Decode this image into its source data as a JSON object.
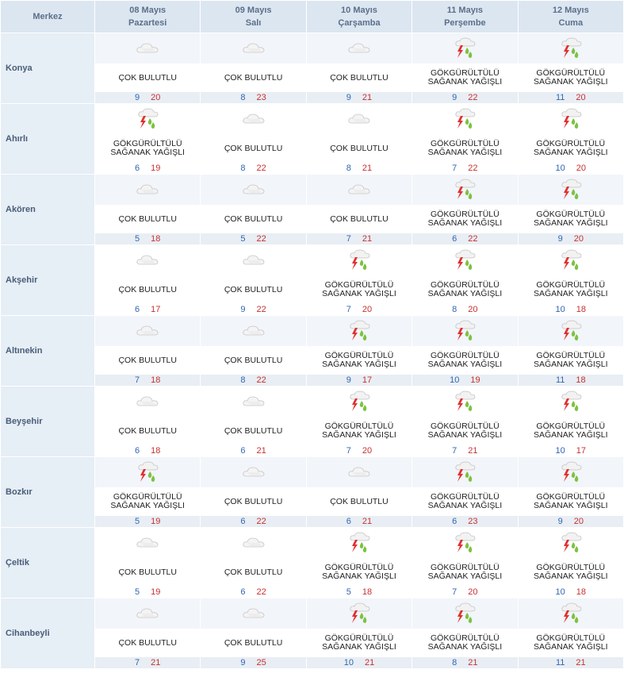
{
  "header": {
    "merkez": "Merkez",
    "days": [
      {
        "date": "08 Mayıs",
        "weekday": "Pazartesi"
      },
      {
        "date": "09 Mayıs",
        "weekday": "Salı"
      },
      {
        "date": "10 Mayıs",
        "weekday": "Çarşamba"
      },
      {
        "date": "11 Mayıs",
        "weekday": "Perşembe"
      },
      {
        "date": "12 Mayıs",
        "weekday": "Cuma"
      }
    ]
  },
  "icons": {
    "cloudy": "cloud-icon",
    "storm": "thunderstorm-icon"
  },
  "colors": {
    "header_bg": "#dce6f1",
    "low_temp": "#2f66b3",
    "high_temp": "#c8302f",
    "storm_bolt": "#e03030",
    "storm_drop": "#7dc242"
  },
  "rows": [
    {
      "city": "Konya",
      "days": [
        {
          "cond": "ÇOK BULUTLU",
          "icon": "cloud-icon",
          "lo": "9",
          "hi": "20"
        },
        {
          "cond": "ÇOK BULUTLU",
          "icon": "cloud-icon",
          "lo": "8",
          "hi": "23"
        },
        {
          "cond": "ÇOK BULUTLU",
          "icon": "cloud-icon",
          "lo": "9",
          "hi": "21"
        },
        {
          "cond": "GÖKGÜRÜLTÜLÜ SAĞANAK YAĞIŞLI",
          "icon": "thunderstorm-icon",
          "lo": "9",
          "hi": "22"
        },
        {
          "cond": "GÖKGÜRÜLTÜLÜ SAĞANAK YAĞIŞLI",
          "icon": "thunderstorm-icon",
          "lo": "11",
          "hi": "20"
        }
      ]
    },
    {
      "city": "Ahırlı",
      "days": [
        {
          "cond": "GÖKGÜRÜLTÜLÜ SAĞANAK YAĞIŞLI",
          "icon": "thunderstorm-icon",
          "lo": "6",
          "hi": "19"
        },
        {
          "cond": "ÇOK BULUTLU",
          "icon": "cloud-icon",
          "lo": "8",
          "hi": "22"
        },
        {
          "cond": "ÇOK BULUTLU",
          "icon": "cloud-icon",
          "lo": "8",
          "hi": "21"
        },
        {
          "cond": "GÖKGÜRÜLTÜLÜ SAĞANAK YAĞIŞLI",
          "icon": "thunderstorm-icon",
          "lo": "7",
          "hi": "22"
        },
        {
          "cond": "GÖKGÜRÜLTÜLÜ SAĞANAK YAĞIŞLI",
          "icon": "thunderstorm-icon",
          "lo": "10",
          "hi": "20"
        }
      ]
    },
    {
      "city": "Akören",
      "days": [
        {
          "cond": "ÇOK BULUTLU",
          "icon": "cloud-icon",
          "lo": "5",
          "hi": "18"
        },
        {
          "cond": "ÇOK BULUTLU",
          "icon": "cloud-icon",
          "lo": "5",
          "hi": "22"
        },
        {
          "cond": "ÇOK BULUTLU",
          "icon": "cloud-icon",
          "lo": "7",
          "hi": "21"
        },
        {
          "cond": "GÖKGÜRÜLTÜLÜ SAĞANAK YAĞIŞLI",
          "icon": "thunderstorm-icon",
          "lo": "6",
          "hi": "22"
        },
        {
          "cond": "GÖKGÜRÜLTÜLÜ SAĞANAK YAĞIŞLI",
          "icon": "thunderstorm-icon",
          "lo": "9",
          "hi": "20"
        }
      ]
    },
    {
      "city": "Akşehir",
      "days": [
        {
          "cond": "ÇOK BULUTLU",
          "icon": "cloud-icon",
          "lo": "6",
          "hi": "17"
        },
        {
          "cond": "ÇOK BULUTLU",
          "icon": "cloud-icon",
          "lo": "9",
          "hi": "22"
        },
        {
          "cond": "GÖKGÜRÜLTÜLÜ SAĞANAK YAĞIŞLI",
          "icon": "thunderstorm-icon",
          "lo": "7",
          "hi": "20"
        },
        {
          "cond": "GÖKGÜRÜLTÜLÜ SAĞANAK YAĞIŞLI",
          "icon": "thunderstorm-icon",
          "lo": "8",
          "hi": "20"
        },
        {
          "cond": "GÖKGÜRÜLTÜLÜ SAĞANAK YAĞIŞLI",
          "icon": "thunderstorm-icon",
          "lo": "10",
          "hi": "18"
        }
      ]
    },
    {
      "city": "Altınekin",
      "days": [
        {
          "cond": "ÇOK BULUTLU",
          "icon": "cloud-icon",
          "lo": "7",
          "hi": "18"
        },
        {
          "cond": "ÇOK BULUTLU",
          "icon": "cloud-icon",
          "lo": "8",
          "hi": "22"
        },
        {
          "cond": "GÖKGÜRÜLTÜLÜ SAĞANAK YAĞIŞLI",
          "icon": "thunderstorm-icon",
          "lo": "9",
          "hi": "17"
        },
        {
          "cond": "GÖKGÜRÜLTÜLÜ SAĞANAK YAĞIŞLI",
          "icon": "thunderstorm-icon",
          "lo": "10",
          "hi": "19"
        },
        {
          "cond": "GÖKGÜRÜLTÜLÜ SAĞANAK YAĞIŞLI",
          "icon": "thunderstorm-icon",
          "lo": "11",
          "hi": "18"
        }
      ]
    },
    {
      "city": "Beyşehir",
      "days": [
        {
          "cond": "ÇOK BULUTLU",
          "icon": "cloud-icon",
          "lo": "6",
          "hi": "18"
        },
        {
          "cond": "ÇOK BULUTLU",
          "icon": "cloud-icon",
          "lo": "6",
          "hi": "21"
        },
        {
          "cond": "GÖKGÜRÜLTÜLÜ SAĞANAK YAĞIŞLI",
          "icon": "thunderstorm-icon",
          "lo": "7",
          "hi": "20"
        },
        {
          "cond": "GÖKGÜRÜLTÜLÜ SAĞANAK YAĞIŞLI",
          "icon": "thunderstorm-icon",
          "lo": "7",
          "hi": "21"
        },
        {
          "cond": "GÖKGÜRÜLTÜLÜ SAĞANAK YAĞIŞLI",
          "icon": "thunderstorm-icon",
          "lo": "10",
          "hi": "17"
        }
      ]
    },
    {
      "city": "Bozkır",
      "days": [
        {
          "cond": "GÖKGÜRÜLTÜLÜ SAĞANAK YAĞIŞLI",
          "icon": "thunderstorm-icon",
          "lo": "5",
          "hi": "19"
        },
        {
          "cond": "ÇOK BULUTLU",
          "icon": "cloud-icon",
          "lo": "6",
          "hi": "22"
        },
        {
          "cond": "ÇOK BULUTLU",
          "icon": "cloud-icon",
          "lo": "6",
          "hi": "21"
        },
        {
          "cond": "GÖKGÜRÜLTÜLÜ SAĞANAK YAĞIŞLI",
          "icon": "thunderstorm-icon",
          "lo": "6",
          "hi": "23"
        },
        {
          "cond": "GÖKGÜRÜLTÜLÜ SAĞANAK YAĞIŞLI",
          "icon": "thunderstorm-icon",
          "lo": "9",
          "hi": "20"
        }
      ]
    },
    {
      "city": "Çeltik",
      "days": [
        {
          "cond": "ÇOK BULUTLU",
          "icon": "cloud-icon",
          "lo": "5",
          "hi": "19"
        },
        {
          "cond": "ÇOK BULUTLU",
          "icon": "cloud-icon",
          "lo": "6",
          "hi": "22"
        },
        {
          "cond": "GÖKGÜRÜLTÜLÜ SAĞANAK YAĞIŞLI",
          "icon": "thunderstorm-icon",
          "lo": "5",
          "hi": "18"
        },
        {
          "cond": "GÖKGÜRÜLTÜLÜ SAĞANAK YAĞIŞLI",
          "icon": "thunderstorm-icon",
          "lo": "7",
          "hi": "20"
        },
        {
          "cond": "GÖKGÜRÜLTÜLÜ SAĞANAK YAĞIŞLI",
          "icon": "thunderstorm-icon",
          "lo": "10",
          "hi": "18"
        }
      ]
    },
    {
      "city": "Cihanbeyli",
      "days": [
        {
          "cond": "ÇOK BULUTLU",
          "icon": "cloud-icon",
          "lo": "7",
          "hi": "21"
        },
        {
          "cond": "ÇOK BULUTLU",
          "icon": "cloud-icon",
          "lo": "9",
          "hi": "25"
        },
        {
          "cond": "GÖKGÜRÜLTÜLÜ SAĞANAK YAĞIŞLI",
          "icon": "thunderstorm-icon",
          "lo": "10",
          "hi": "21"
        },
        {
          "cond": "GÖKGÜRÜLTÜLÜ SAĞANAK YAĞIŞLI",
          "icon": "thunderstorm-icon",
          "lo": "8",
          "hi": "21"
        },
        {
          "cond": "GÖKGÜRÜLTÜLÜ SAĞANAK YAĞIŞLI",
          "icon": "thunderstorm-icon",
          "lo": "11",
          "hi": "21"
        }
      ]
    }
  ]
}
